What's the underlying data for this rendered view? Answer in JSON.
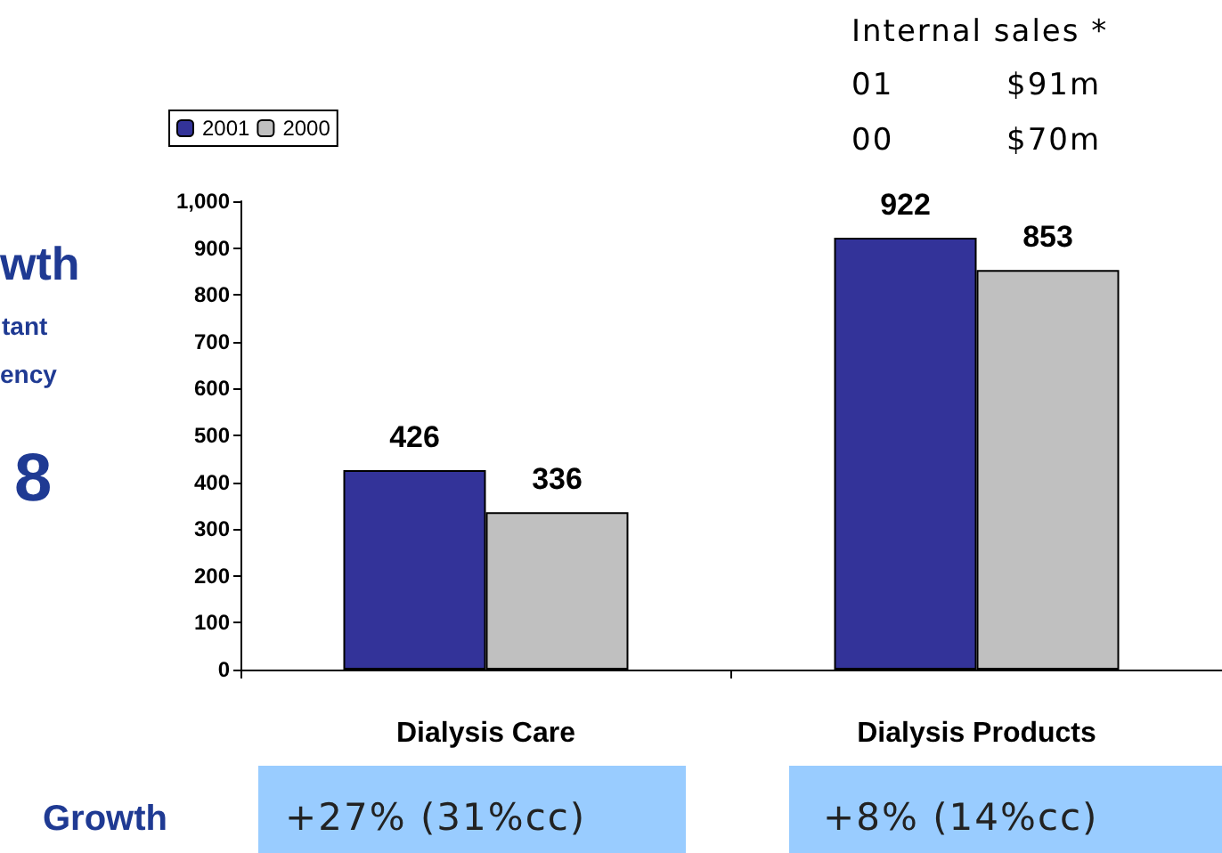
{
  "chart_data": {
    "type": "bar",
    "categories": [
      "Dialysis Care",
      "Dialysis Products"
    ],
    "series": [
      {
        "name": "2001",
        "color": "#333399",
        "values": [
          426,
          922
        ]
      },
      {
        "name": "2000",
        "color": "#c0c0c0",
        "values": [
          336,
          853
        ]
      }
    ],
    "ylim": [
      0,
      1000
    ],
    "yticks": [
      0,
      100,
      200,
      300,
      400,
      500,
      600,
      700,
      800,
      900,
      {
        "value": 1000,
        "label": "1,000"
      }
    ],
    "data_labels": true,
    "grid": false,
    "legend": "top left",
    "annotations": [
      "Internal sales *",
      "01",
      "$91m",
      "00",
      "$70m",
      "wth",
      "tant",
      "ency",
      "8",
      "Growth",
      "+27% (31%cc)",
      "+8% (14%cc)"
    ]
  }
}
